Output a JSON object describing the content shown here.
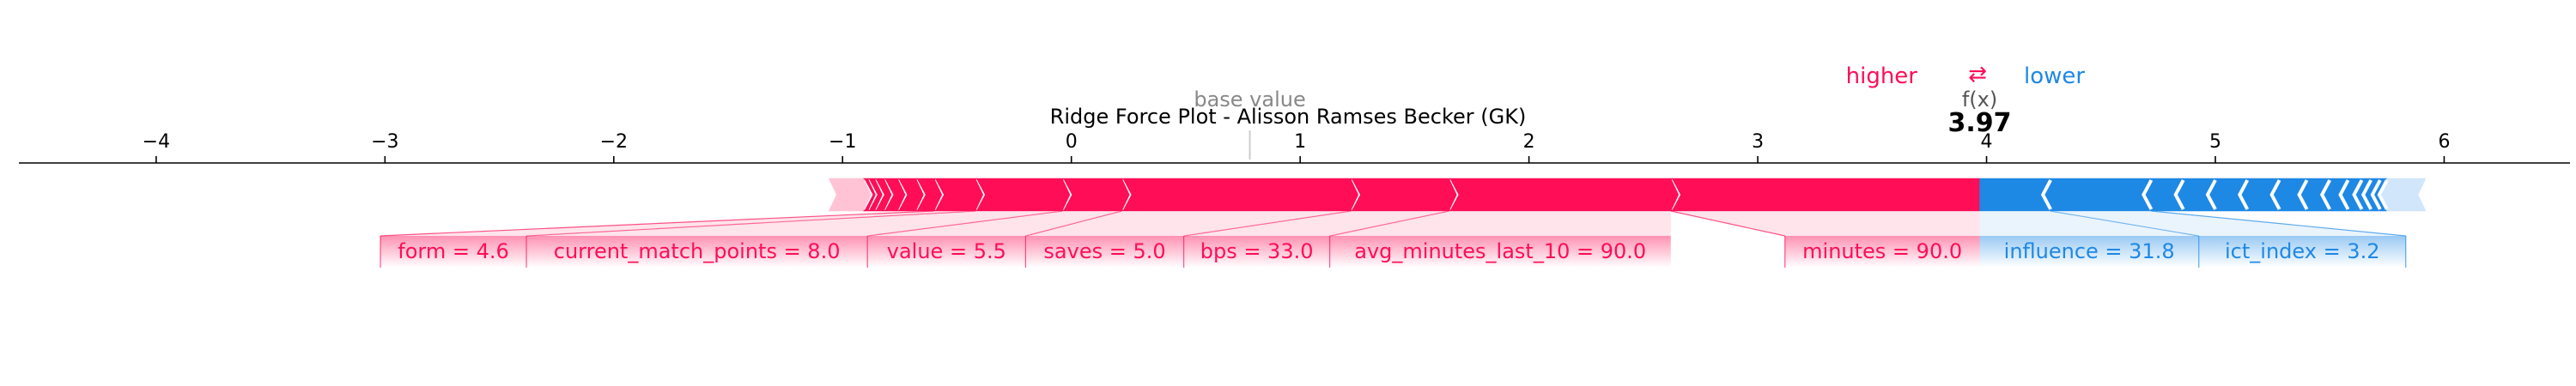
{
  "chart_data": {
    "type": "force",
    "title": "Ridge Force Plot - Alisson Ramses Becker (GK)",
    "xlim": [
      -4.6,
      6.55
    ],
    "ticks": [
      -4,
      -3,
      -2,
      -1,
      0,
      1,
      2,
      3,
      4,
      5,
      6
    ],
    "tick_labels": [
      "−4",
      "−3",
      "−2",
      "−1",
      "0",
      "1",
      "2",
      "3",
      "4",
      "5",
      "6"
    ],
    "base_value": 0.78,
    "base_value_label": "base value",
    "output_value": 3.97,
    "output_value_text": "3.97",
    "output_label": "f(x)",
    "legend": {
      "higher": "higher",
      "arrows": "⇄",
      "lower": "lower"
    },
    "colors": {
      "positive": "#ff0d57",
      "negative": "#1e88e5",
      "positive_light": "#ffc3d5",
      "negative_light": "#d1e6fa"
    },
    "positive_features": [
      {
        "label": "minutes = 90.0",
        "start": 2.62,
        "end": 3.97
      },
      {
        "label": "avg_minutes_last_10 = 90.0",
        "start": 1.65,
        "end": 2.62
      },
      {
        "label": "bps = 33.0",
        "start": 1.22,
        "end": 1.65
      },
      {
        "label": "saves = 5.0",
        "start": 0.22,
        "end": 1.22
      },
      {
        "label": "value = 5.5",
        "start": -0.04,
        "end": 0.22
      },
      {
        "label": "current_match_points = 8.0",
        "start": -0.42,
        "end": -0.04
      },
      {
        "label": "form = 4.6",
        "start": -0.6,
        "end": -0.42
      },
      {
        "label": "",
        "start": -0.68,
        "end": -0.6
      },
      {
        "label": "",
        "start": -0.76,
        "end": -0.68
      },
      {
        "label": "",
        "start": -0.82,
        "end": -0.76
      },
      {
        "label": "",
        "start": -0.86,
        "end": -0.82
      },
      {
        "label": "",
        "start": -0.89,
        "end": -0.86
      },
      {
        "label": "",
        "start": -0.91,
        "end": -0.89
      },
      {
        "label": "",
        "start": -1.06,
        "end": -0.91
      }
    ],
    "negative_features": [
      {
        "label": "influence = 31.8",
        "start": 3.97,
        "end": 4.28
      },
      {
        "label": "ict_index = 3.2",
        "start": 4.28,
        "end": 4.72
      },
      {
        "label": "",
        "start": 4.72,
        "end": 4.86
      },
      {
        "label": "",
        "start": 4.86,
        "end": 5.0
      },
      {
        "label": "",
        "start": 5.0,
        "end": 5.14
      },
      {
        "label": "",
        "start": 5.14,
        "end": 5.28
      },
      {
        "label": "",
        "start": 5.28,
        "end": 5.4
      },
      {
        "label": "",
        "start": 5.4,
        "end": 5.5
      },
      {
        "label": "",
        "start": 5.5,
        "end": 5.58
      },
      {
        "label": "",
        "start": 5.58,
        "end": 5.64
      },
      {
        "label": "",
        "start": 5.64,
        "end": 5.68
      },
      {
        "label": "",
        "start": 5.68,
        "end": 5.72
      },
      {
        "label": "",
        "start": 5.72,
        "end": 5.75
      },
      {
        "label": "",
        "start": 5.75,
        "end": 5.92
      }
    ]
  }
}
